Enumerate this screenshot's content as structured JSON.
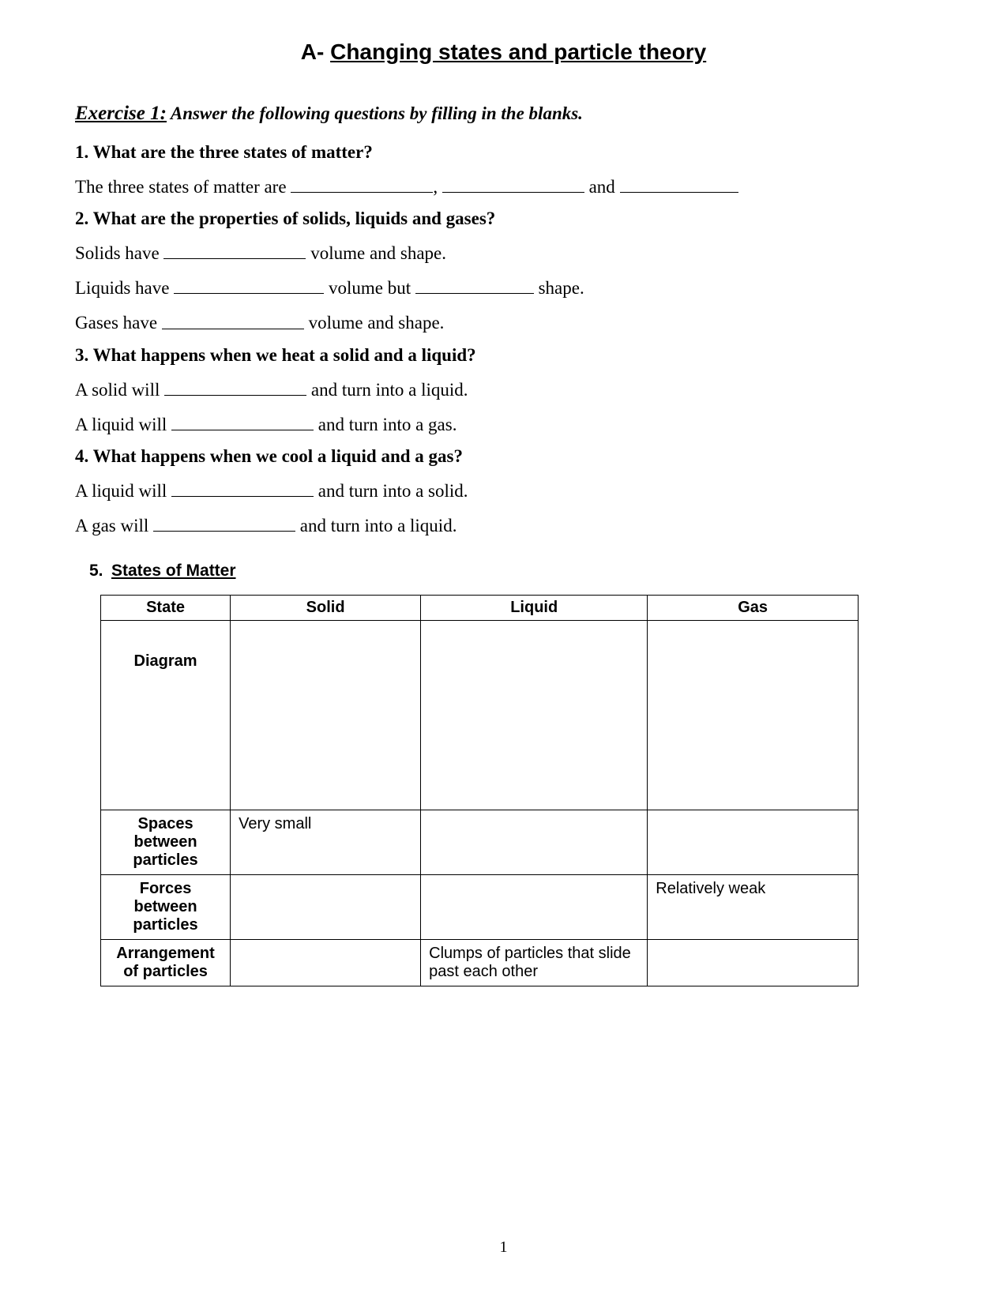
{
  "title_prefix": "A- ",
  "title_underlined": "Changing states and particle theory",
  "exercise_label": "Exercise 1:",
  "exercise_instruction": " Answer the following questions by filling in the blanks.",
  "q1": "1. What are the three states of matter?",
  "q1_line_a": "The three states of matter are ",
  "q1_line_b": ", ",
  "q1_line_c": " and ",
  "q2": "2. What are the properties of solids, liquids and gases?",
  "q2_l1a": "Solids have ",
  "q2_l1b": " volume and shape.",
  "q2_l2a": "Liquids have ",
  "q2_l2b": " volume but ",
  "q2_l2c": " shape.",
  "q2_l3a": "Gases have ",
  "q2_l3b": " volume and shape.",
  "q3": "3. What happens when we heat a solid and a liquid?",
  "q3_l1a": "A solid will ",
  "q3_l1b": " and turn into a liquid.",
  "q3_l2a": "A liquid will ",
  "q3_l2b": " and turn into a gas.",
  "q4": "4. What happens when we cool a liquid and a gas?",
  "q4_l1a": "A liquid will ",
  "q4_l1b": " and turn into a solid.",
  "q4_l2a": "A gas will ",
  "q4_l2b": " and turn into a liquid.",
  "q5_num": "5.",
  "q5_title": "States of Matter",
  "table": {
    "headers": [
      "State",
      "Solid",
      "Liquid",
      "Gas"
    ],
    "rows": [
      {
        "head": "Diagram",
        "solid": "",
        "liquid": "",
        "gas": ""
      },
      {
        "head": "Spaces between particles",
        "solid": "Very small",
        "liquid": "",
        "gas": ""
      },
      {
        "head": "Forces between particles",
        "solid": "",
        "liquid": "",
        "gas": "Relatively weak"
      },
      {
        "head": "Arrangement of particles",
        "solid": "",
        "liquid": "Clumps of particles that slide past each other",
        "gas": ""
      }
    ]
  },
  "page_number": "1"
}
